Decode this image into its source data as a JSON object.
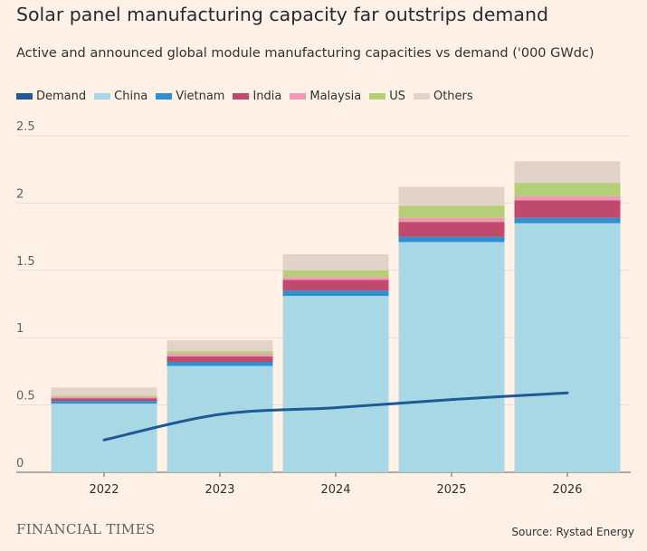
{
  "header": {
    "title": "Solar panel manufacturing capacity far outstrips demand",
    "subtitle": "Active and announced global module manufacturing capacities vs demand ('000 GWdc)"
  },
  "legend": [
    {
      "label": "Demand",
      "color": "#1f5a96"
    },
    {
      "label": "China",
      "color": "#a8d8e6"
    },
    {
      "label": "Vietnam",
      "color": "#2f8fd0"
    },
    {
      "label": "India",
      "color": "#c04a6e"
    },
    {
      "label": "Malaysia",
      "color": "#f397b8"
    },
    {
      "label": "US",
      "color": "#b5cf78"
    },
    {
      "label": "Others",
      "color": "#e2d3c8"
    }
  ],
  "chart_data": {
    "type": "bar",
    "stacked": true,
    "categories": [
      "2022",
      "2023",
      "2024",
      "2025",
      "2026"
    ],
    "series": [
      {
        "name": "China",
        "color": "#a8d8e6",
        "values": [
          0.51,
          0.79,
          1.31,
          1.71,
          1.85
        ]
      },
      {
        "name": "Vietnam",
        "color": "#2f8fd0",
        "values": [
          0.02,
          0.03,
          0.04,
          0.04,
          0.04
        ]
      },
      {
        "name": "India",
        "color": "#c04a6e",
        "values": [
          0.02,
          0.04,
          0.08,
          0.11,
          0.13
        ]
      },
      {
        "name": "Malaysia",
        "color": "#f397b8",
        "values": [
          0.01,
          0.02,
          0.02,
          0.03,
          0.03
        ]
      },
      {
        "name": "US",
        "color": "#b5cf78",
        "values": [
          0.01,
          0.02,
          0.05,
          0.09,
          0.1
        ]
      },
      {
        "name": "Others",
        "color": "#e2d3c8",
        "values": [
          0.06,
          0.08,
          0.12,
          0.14,
          0.16
        ]
      }
    ],
    "line_series": {
      "name": "Demand",
      "color": "#1f5a96",
      "values": [
        0.24,
        0.43,
        0.48,
        0.54,
        0.59
      ]
    },
    "ylim": [
      0,
      2.5
    ],
    "yticks": [
      0,
      0.5,
      1,
      1.5,
      2,
      2.5
    ],
    "ytick_labels": [
      "0",
      "0.5",
      "1",
      "1.5",
      "2",
      "2.5"
    ],
    "grid": true,
    "legend_position": "top-left"
  },
  "footer": {
    "brand": "FINANCIAL TIMES",
    "source": "Source: Rystad Energy"
  }
}
